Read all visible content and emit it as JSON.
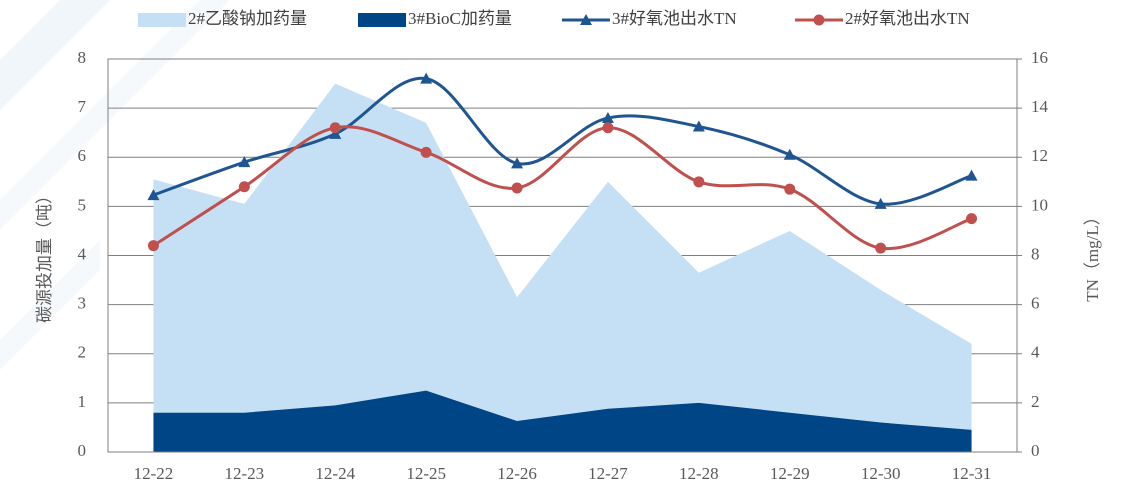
{
  "chart_data": {
    "type": "area_line",
    "categories": [
      "12-22",
      "12-23",
      "12-24",
      "12-25",
      "12-26",
      "12-27",
      "12-28",
      "12-29",
      "12-30",
      "12-31"
    ],
    "series": [
      {
        "name": "2#乙酸钠加药量",
        "type": "area",
        "color": "#c5e0f4",
        "values": [
          5.55,
          5.05,
          7.5,
          6.7,
          3.15,
          5.5,
          3.65,
          4.5,
          3.3,
          2.2
        ]
      },
      {
        "name": "3#BioC加药量",
        "type": "area",
        "color": "#004586",
        "values": [
          0.8,
          0.8,
          0.95,
          1.25,
          0.63,
          0.88,
          1.0,
          0.8,
          0.6,
          0.45
        ]
      },
      {
        "name": "3#好氧池出水TN",
        "type": "line",
        "axis": "y2",
        "marker": "triangle",
        "color": "#1f5591",
        "values": [
          10.46,
          11.8,
          12.95,
          15.2,
          11.75,
          13.6,
          13.25,
          12.1,
          10.1,
          11.25
        ]
      },
      {
        "name": "2#好氧池出水TN",
        "type": "line",
        "axis": "y2",
        "marker": "circle",
        "color": "#c0504d",
        "values": [
          8.4,
          10.8,
          13.2,
          12.2,
          10.75,
          13.2,
          11.0,
          10.7,
          8.3,
          9.5
        ]
      }
    ],
    "y_label": "碳源投加量（吨）",
    "y2_label": "TN（mg/L）",
    "ylim": [
      0,
      8
    ],
    "yticks": [
      0,
      1,
      2,
      3,
      4,
      5,
      6,
      7,
      8
    ],
    "y2lim": [
      0,
      16
    ],
    "y2ticks": [
      0,
      2,
      4,
      6,
      8,
      10,
      12,
      14,
      16
    ],
    "grid": true,
    "legend": "top"
  }
}
